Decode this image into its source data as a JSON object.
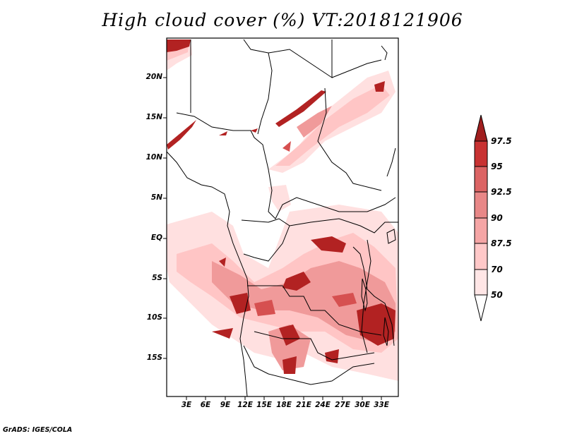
{
  "title": "High cloud cover (%) VT:2018121906",
  "credit": "GrADS: IGES/COLA",
  "lat_labels": [
    "20N",
    "15N",
    "10N",
    "5N",
    "EQ",
    "5S",
    "10S",
    "15S"
  ],
  "lon_labels": [
    "3E",
    "6E",
    "9E",
    "12E",
    "15E",
    "18E",
    "21E",
    "24E",
    "27E",
    "30E",
    "33E"
  ],
  "colorbar": {
    "labels": [
      "50",
      "70",
      "87.5",
      "90",
      "92.5",
      "95",
      "97.5"
    ],
    "colors": [
      "#ffe6e6",
      "#ffc8c8",
      "#f5a5a5",
      "#e88787",
      "#dc6464",
      "#c83232",
      "#a01e1e"
    ]
  },
  "map_data": {
    "domain": {
      "lon": [
        0,
        36
      ],
      "lat": [
        -20,
        25
      ]
    },
    "variable": "High cloud cover",
    "units": "%",
    "valid_time": "2018121906"
  }
}
